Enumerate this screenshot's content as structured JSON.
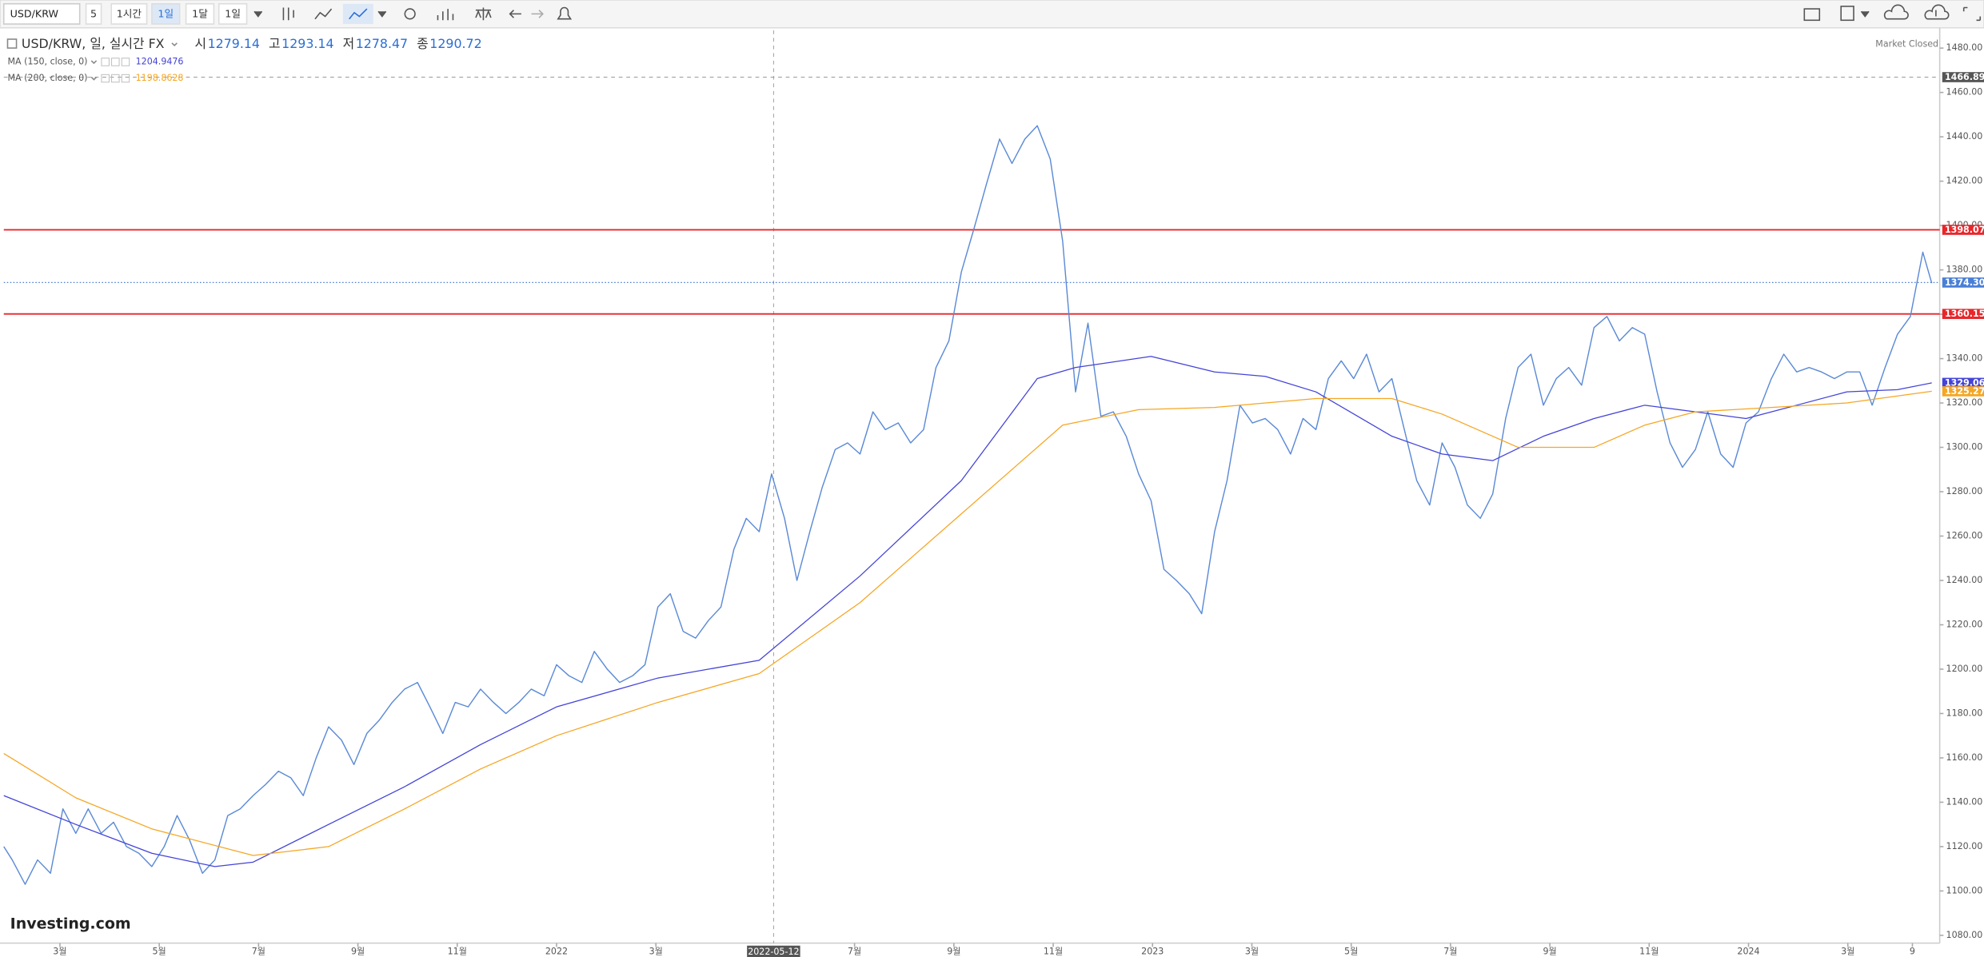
{
  "toolbar": {
    "symbol": "USD/KRW",
    "intervals": [
      "5",
      "1시간",
      "1일",
      "1달",
      "1일"
    ],
    "active": 2
  },
  "chart_data": {
    "type": "line",
    "title": "USD/KRW, 일, 실시간 FX",
    "ohlc": [
      {
        "label": "시",
        "value": 1279.14
      },
      {
        "label": "고",
        "value": 1293.14
      },
      {
        "label": "저",
        "value": 1278.47
      },
      {
        "label": "종",
        "value": 1290.72
      }
    ],
    "status": "Market Closed",
    "watermark": "Investing.com",
    "xlim": [
      0.87,
      39.85
    ],
    "ylim": [
      1076.5,
      1488
    ],
    "xticks": [
      {
        "value": 2,
        "label": "3월"
      },
      {
        "value": 4,
        "label": "5월"
      },
      {
        "value": 6,
        "label": "7월"
      },
      {
        "value": 8,
        "label": "9월"
      },
      {
        "value": 10,
        "label": "11월"
      },
      {
        "value": 12,
        "label": "2022"
      },
      {
        "value": 14,
        "label": "3월"
      },
      {
        "value": 18,
        "label": "7월"
      },
      {
        "value": 20,
        "label": "9월"
      },
      {
        "value": 22,
        "label": "11월"
      },
      {
        "value": 24,
        "label": "2023"
      },
      {
        "value": 26,
        "label": "3월"
      },
      {
        "value": 28,
        "label": "5월"
      },
      {
        "value": 30,
        "label": "7월"
      },
      {
        "value": 32,
        "label": "9월"
      },
      {
        "value": 34,
        "label": "11월"
      },
      {
        "value": 36,
        "label": "2024"
      },
      {
        "value": 38,
        "label": "3월"
      },
      {
        "value": 39.3,
        "label": "9"
      }
    ],
    "yticks": [
      {
        "value": 1080,
        "label": "1080.00"
      },
      {
        "value": 1100,
        "label": "1100.00"
      },
      {
        "value": 1120,
        "label": "1120.00"
      },
      {
        "value": 1140,
        "label": "1140.00"
      },
      {
        "value": 1160,
        "label": "1160.00"
      },
      {
        "value": 1180,
        "label": "1180.00"
      },
      {
        "value": 1200,
        "label": "1200.00"
      },
      {
        "value": 1220,
        "label": "1220.00"
      },
      {
        "value": 1240,
        "label": "1240.00"
      },
      {
        "value": 1260,
        "label": "1260.00"
      },
      {
        "value": 1280,
        "label": "1280.00"
      },
      {
        "value": 1300,
        "label": "1300.00"
      },
      {
        "value": 1320,
        "label": "1320.00"
      },
      {
        "value": 1340,
        "label": "1340.00"
      },
      {
        "value": 1360,
        "label": "1360.00"
      },
      {
        "value": 1380,
        "label": "1380.00"
      },
      {
        "value": 1400,
        "label": "1400.00"
      },
      {
        "value": 1420,
        "label": "1420.00"
      },
      {
        "value": 1440,
        "label": "1440.00"
      },
      {
        "value": 1460,
        "label": "1460.00"
      },
      {
        "value": 1480,
        "label": "1480.00"
      }
    ],
    "crosshair": {
      "x": 16.37,
      "x_label": "2022-05-12",
      "y": 1466.89
    },
    "levels": [
      {
        "value": 1398.07,
        "label": "1398.07",
        "color": "#e8262a",
        "style": "solid"
      },
      {
        "value": 1374.3,
        "label": "1374.30",
        "color": "#4a7fd6",
        "style": "dotted"
      },
      {
        "value": 1360.15,
        "label": "1360.15",
        "color": "#e8262a",
        "style": "solid"
      }
    ],
    "series": [
      {
        "color": "#5b8ad6",
        "x": [
          0.87,
          1.04,
          1.3,
          1.55,
          1.81,
          2.06,
          2.32,
          2.57,
          2.83,
          3.08,
          3.34,
          3.59,
          3.85,
          4.1,
          4.36,
          4.61,
          4.87,
          5.12,
          5.38,
          5.63,
          5.89,
          6.14,
          6.4,
          6.65,
          6.9,
          7.16,
          7.41,
          7.67,
          7.92,
          8.18,
          8.43,
          8.69,
          8.94,
          9.2,
          9.45,
          9.71,
          9.96,
          10.22,
          10.47,
          10.73,
          10.98,
          11.24,
          11.49,
          11.75,
          12.0,
          12.25,
          12.51,
          12.76,
          13.02,
          13.27,
          13.53,
          13.78,
          14.04,
          14.29,
          14.55,
          14.8,
          15.06,
          15.31,
          15.57,
          15.82,
          16.08,
          16.33,
          16.59,
          16.84,
          17.1,
          17.35,
          17.61,
          17.86,
          18.11,
          18.37,
          18.62,
          18.88,
          19.13,
          19.39,
          19.64,
          19.9,
          20.15,
          20.41,
          20.66,
          20.92,
          21.17,
          21.43,
          21.68,
          21.94,
          22.19,
          22.45,
          22.7,
          22.96,
          23.21,
          23.47,
          23.72,
          23.97,
          24.23,
          24.48,
          24.74,
          24.99,
          25.25,
          25.5,
          25.76,
          26.01,
          26.27,
          26.52,
          26.78,
          27.03,
          27.29,
          27.54,
          27.8,
          28.05,
          28.31,
          28.56,
          28.82,
          29.07,
          29.32,
          29.58,
          29.83,
          30.09,
          30.34,
          30.6,
          30.85,
          31.11,
          31.36,
          31.62,
          31.87,
          32.13,
          32.38,
          32.64,
          32.89,
          33.15,
          33.4,
          33.66,
          33.91,
          34.16,
          34.42,
          34.67,
          34.93,
          35.18,
          35.44,
          35.69,
          35.95,
          36.2,
          36.46,
          36.71,
          36.97,
          37.22,
          37.47,
          37.73,
          37.98,
          38.24,
          38.49,
          38.75,
          39.0,
          39.26,
          39.51,
          39.69
        ],
        "values": [
          1120,
          1114,
          1103,
          1114,
          1108,
          1137,
          1126,
          1137,
          1126,
          1131,
          1120,
          1117,
          1111,
          1120,
          1134,
          1123,
          1108,
          1114,
          1134,
          1137,
          1143,
          1148,
          1154,
          1151,
          1143,
          1160,
          1174,
          1168,
          1157,
          1171,
          1177,
          1185,
          1191,
          1194,
          1183,
          1171,
          1185,
          1183,
          1191,
          1185,
          1180,
          1185,
          1191,
          1188,
          1202,
          1197,
          1194,
          1208,
          1200,
          1194,
          1197,
          1202,
          1228,
          1234,
          1217,
          1214,
          1222,
          1228,
          1254,
          1268,
          1262,
          1288,
          1268,
          1240,
          1262,
          1282,
          1299,
          1302,
          1297,
          1316,
          1308,
          1311,
          1302,
          1308,
          1336,
          1348,
          1379,
          1399,
          1419,
          1439,
          1428,
          1439,
          1445,
          1430,
          1393,
          1325,
          1356,
          1314,
          1316,
          1305,
          1288,
          1276,
          1245,
          1240,
          1234,
          1225,
          1262,
          1285,
          1319,
          1311,
          1313,
          1308,
          1297,
          1313,
          1308,
          1331,
          1339,
          1331,
          1342,
          1325,
          1331,
          1308,
          1285,
          1274,
          1302,
          1291,
          1274,
          1268,
          1279,
          1313,
          1336,
          1342,
          1319,
          1331,
          1336,
          1328,
          1354,
          1359,
          1348,
          1354,
          1351,
          1325,
          1302,
          1291,
          1299,
          1316,
          1297,
          1291,
          1311,
          1316,
          1331,
          1342,
          1334,
          1336,
          1334,
          1331,
          1334,
          1334,
          1319,
          1336,
          1351,
          1359,
          1388,
          1374
        ]
      },
      {
        "name": "MA (150, close, 0)",
        "legend_value": 1204.9476,
        "color": "#4343d8",
        "x": [
          0.87,
          2.32,
          3.85,
          5.12,
          5.89,
          7.41,
          8.94,
          10.47,
          12.0,
          14.04,
          16.08,
          18.11,
          20.15,
          21.68,
          22.45,
          23.97,
          25.25,
          26.27,
          27.29,
          28.82,
          29.83,
          30.85,
          31.87,
          32.89,
          33.91,
          34.93,
          35.95,
          36.97,
          37.98,
          39.0,
          39.69
        ],
        "values": [
          1143,
          1130,
          1117,
          1111,
          1113,
          1130,
          1147,
          1166,
          1183,
          1196,
          1204,
          1242,
          1285,
          1331,
          1336,
          1341,
          1334,
          1332,
          1325,
          1305,
          1297,
          1294,
          1305,
          1313,
          1319,
          1316,
          1313,
          1319,
          1325,
          1326,
          1329.06
        ]
      },
      {
        "name": "MA (200, close, 0)",
        "legend_value": 1198.8628,
        "color": "#f5a623",
        "x": [
          0.87,
          2.32,
          3.85,
          5.89,
          7.41,
          8.94,
          10.47,
          12.0,
          14.04,
          16.08,
          18.11,
          20.15,
          22.19,
          23.72,
          25.25,
          27.29,
          28.82,
          29.83,
          31.36,
          32.89,
          33.91,
          34.93,
          36.46,
          37.98,
          39.69
        ],
        "values": [
          1162,
          1142,
          1128,
          1116,
          1120,
          1137,
          1155,
          1170,
          1185,
          1198,
          1230,
          1270,
          1310,
          1317,
          1318,
          1322,
          1322,
          1315,
          1300,
          1300,
          1310,
          1316,
          1318,
          1320,
          1325.27
        ]
      }
    ]
  }
}
